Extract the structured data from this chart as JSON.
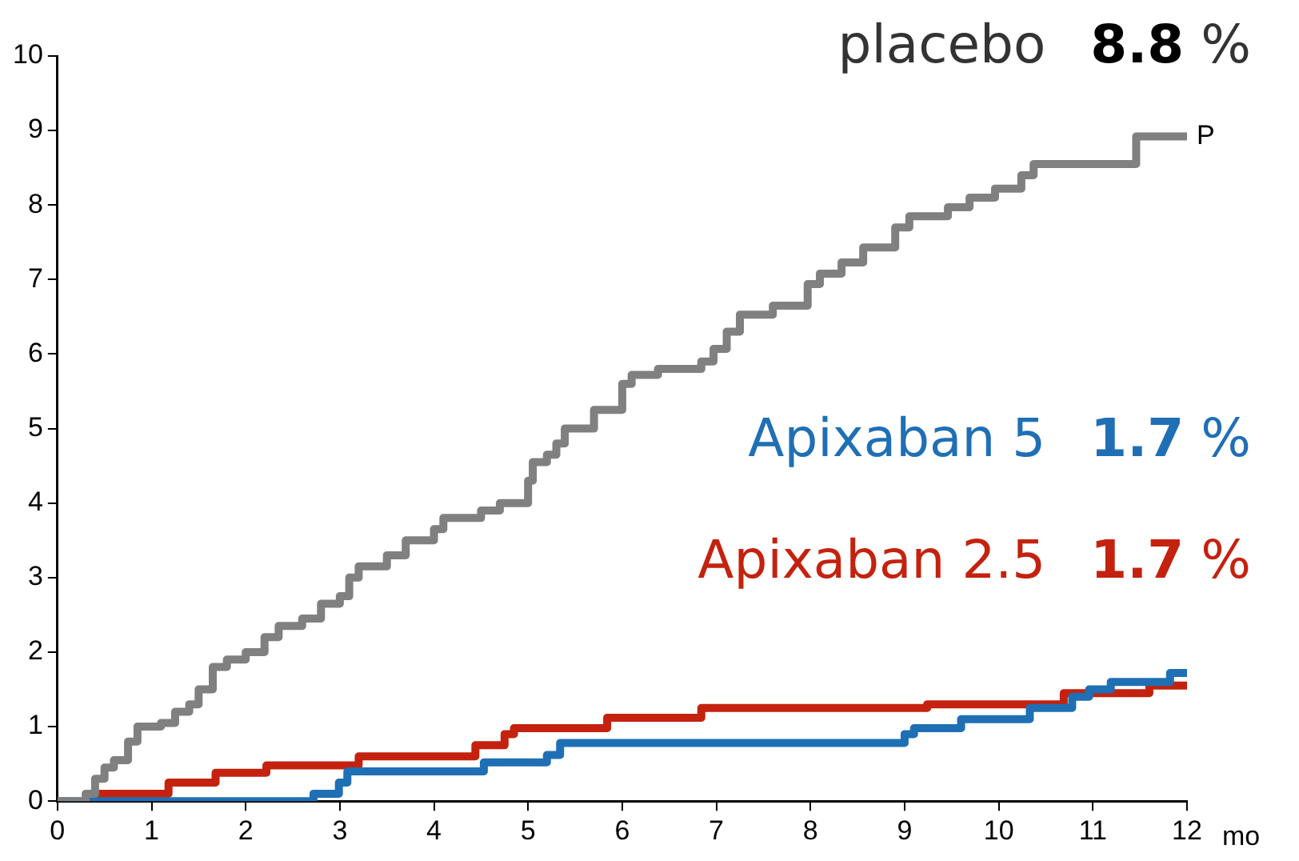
{
  "chart_data": {
    "type": "step",
    "xlabel": "mo",
    "xlim": [
      0,
      12
    ],
    "xticks": [
      0,
      1,
      2,
      3,
      4,
      5,
      6,
      7,
      8,
      9,
      10,
      11,
      12
    ],
    "ylim": [
      0,
      10
    ],
    "yticks": [
      0,
      1,
      2,
      3,
      4,
      5,
      6,
      7,
      8,
      9,
      10
    ],
    "grid": false,
    "legend": false,
    "marker": "none",
    "line_style": "solid",
    "series": [
      {
        "name": "placebo",
        "color": "#808080",
        "x": [
          0,
          0.3,
          0.4,
          0.5,
          0.6,
          0.75,
          0.85,
          1.1,
          1.25,
          1.4,
          1.5,
          1.65,
          1.8,
          2.0,
          2.2,
          2.35,
          2.6,
          2.8,
          3.0,
          3.1,
          3.2,
          3.5,
          3.7,
          4.0,
          4.1,
          4.5,
          4.7,
          5.0,
          5.05,
          5.2,
          5.3,
          5.39,
          5.7,
          6.0,
          6.1,
          6.38,
          6.84,
          6.97,
          7.11,
          7.25,
          7.6,
          7.97,
          8.1,
          8.33,
          8.56,
          8.9,
          9.05,
          9.46,
          9.69,
          9.96,
          10.24,
          10.37,
          11.46,
          12
        ],
        "values": [
          0,
          0.1,
          0.3,
          0.45,
          0.55,
          0.8,
          1.0,
          1.05,
          1.2,
          1.3,
          1.5,
          1.8,
          1.9,
          2.0,
          2.2,
          2.35,
          2.45,
          2.65,
          2.75,
          3.0,
          3.15,
          3.3,
          3.5,
          3.65,
          3.8,
          3.9,
          4.0,
          4.3,
          4.55,
          4.65,
          4.8,
          5.0,
          5.25,
          5.6,
          5.72,
          5.8,
          5.9,
          6.07,
          6.3,
          6.53,
          6.65,
          6.94,
          7.08,
          7.23,
          7.43,
          7.7,
          7.85,
          7.97,
          8.1,
          8.22,
          8.4,
          8.55,
          8.92,
          8.92
        ]
      },
      {
        "name": "Apixaban 5",
        "color": "#1f6fb5",
        "x": [
          0,
          2.72,
          2.99,
          3.08,
          4.53,
          5.2,
          5.34,
          9.0,
          9.1,
          9.6,
          10.33,
          10.78,
          10.96,
          11.19,
          11.82,
          12
        ],
        "values": [
          0,
          0.1,
          0.25,
          0.4,
          0.52,
          0.62,
          0.78,
          0.9,
          0.98,
          1.1,
          1.25,
          1.4,
          1.5,
          1.6,
          1.72,
          1.72
        ]
      },
      {
        "name": "Apixaban 2.5",
        "color": "#c4220e",
        "x": [
          0.35,
          0.36,
          1.18,
          1.68,
          2.22,
          3.2,
          4.44,
          4.75,
          4.85,
          5.84,
          6.84,
          9.24,
          10.69,
          11.6,
          12
        ],
        "values": [
          0,
          0.1,
          0.25,
          0.38,
          0.48,
          0.6,
          0.75,
          0.9,
          0.98,
          1.12,
          1.25,
          1.3,
          1.45,
          1.55,
          1.55
        ]
      }
    ],
    "annotations": [
      "8.8 %",
      "1.7 %",
      "1.7 %",
      {
        "text": "P",
        "x": 12,
        "y": 8.92
      }
    ]
  }
}
